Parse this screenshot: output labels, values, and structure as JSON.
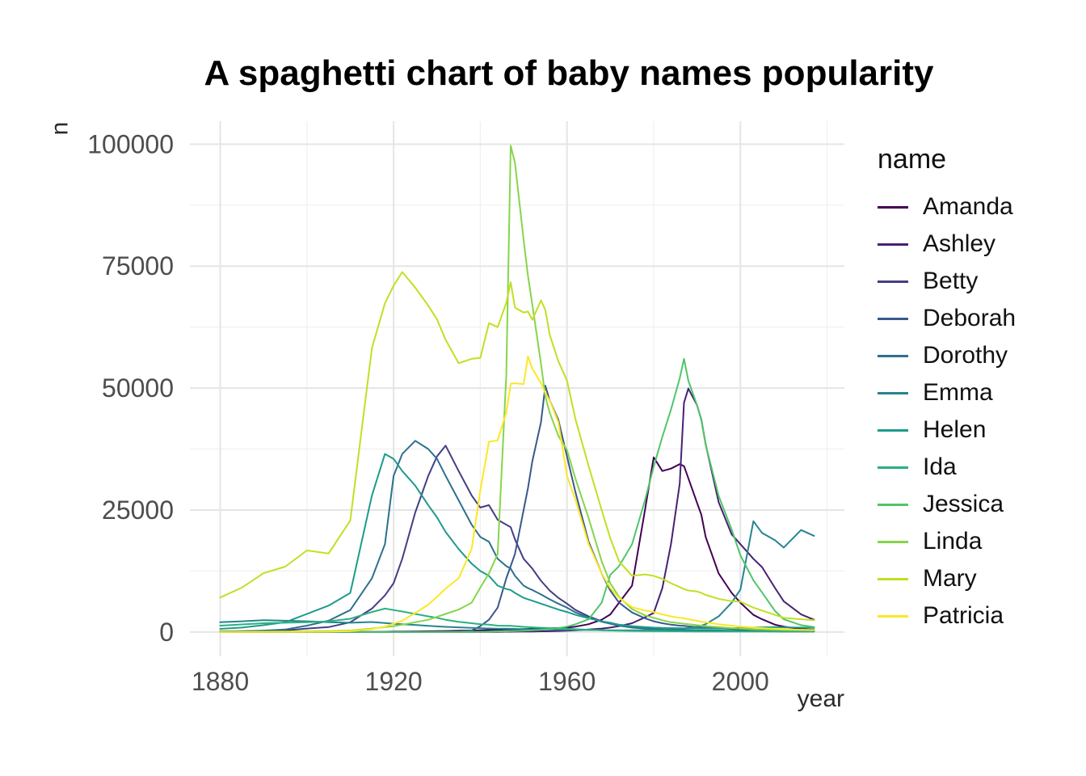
{
  "chart_data": {
    "type": "line",
    "title": "A spaghetti chart of baby names popularity",
    "xlabel": "year",
    "ylabel": "n",
    "legend_title": "name",
    "legend_position": "right",
    "grid": true,
    "background": "#FFFFFF",
    "grid_major_color": "#E5E5E5",
    "grid_minor_color": "#F0F0F0",
    "tick_text_color": "#4D4D4D",
    "xlim": [
      1873,
      2024
    ],
    "ylim": [
      -5000,
      104700
    ],
    "x_ticks": [
      {
        "value": 1880,
        "label": "1880"
      },
      {
        "value": 1920,
        "label": "1920"
      },
      {
        "value": 1960,
        "label": "1960"
      },
      {
        "value": 2000,
        "label": "2000"
      }
    ],
    "x_minor": [
      1900,
      1940,
      1980,
      2020
    ],
    "y_ticks": [
      {
        "value": 0,
        "label": "0"
      },
      {
        "value": 25000,
        "label": "25000"
      },
      {
        "value": 50000,
        "label": "50000"
      },
      {
        "value": 75000,
        "label": "75000"
      },
      {
        "value": 100000,
        "label": "100000"
      }
    ],
    "y_minor": [
      12500,
      37500,
      62500,
      87500
    ],
    "years": [
      1880,
      1885,
      1890,
      1895,
      1900,
      1905,
      1910,
      1915,
      1918,
      1920,
      1922,
      1925,
      1928,
      1930,
      1932,
      1935,
      1938,
      1940,
      1942,
      1944,
      1946,
      1947,
      1948,
      1950,
      1951,
      1952,
      1954,
      1955,
      1956,
      1958,
      1960,
      1962,
      1965,
      1968,
      1970,
      1972,
      1975,
      1978,
      1980,
      1982,
      1984,
      1986,
      1987,
      1988,
      1990,
      1991,
      1992,
      1995,
      1998,
      2000,
      2003,
      2005,
      2008,
      2010,
      2014,
      2017
    ],
    "series": [
      {
        "name": "Amanda",
        "color": "#440154",
        "values": [
          0,
          0,
          0,
          0,
          0,
          0,
          0,
          50,
          60,
          80,
          90,
          120,
          150,
          180,
          200,
          250,
          300,
          350,
          400,
          450,
          500,
          520,
          540,
          600,
          620,
          650,
          700,
          720,
          750,
          820,
          900,
          1100,
          1600,
          2500,
          3600,
          6000,
          9500,
          25000,
          35800,
          33000,
          33500,
          34400,
          34000,
          31500,
          26500,
          24000,
          19500,
          12000,
          8000,
          6000,
          3500,
          2600,
          1500,
          1100,
          600,
          450
        ]
      },
      {
        "name": "Ashley",
        "color": "#482173",
        "values": [
          0,
          0,
          0,
          0,
          0,
          0,
          0,
          0,
          0,
          0,
          0,
          0,
          0,
          0,
          0,
          0,
          0,
          0,
          0,
          0,
          50,
          60,
          70,
          90,
          100,
          110,
          130,
          140,
          160,
          200,
          250,
          350,
          500,
          700,
          900,
          1200,
          1800,
          3000,
          3900,
          9000,
          18000,
          30400,
          47000,
          49900,
          46500,
          43500,
          38500,
          26600,
          20000,
          18000,
          15000,
          13300,
          9000,
          6300,
          3600,
          2500
        ]
      },
      {
        "name": "Betty",
        "color": "#433E85",
        "values": [
          117,
          150,
          220,
          320,
          700,
          1000,
          2000,
          4800,
          7500,
          10000,
          15000,
          24500,
          32000,
          36000,
          38200,
          33000,
          28000,
          25500,
          26000,
          23000,
          22000,
          21500,
          19000,
          15000,
          14000,
          13000,
          10500,
          9500,
          8500,
          7000,
          5800,
          4500,
          3200,
          2200,
          1800,
          1300,
          900,
          700,
          600,
          500,
          420,
          360,
          340,
          320,
          290,
          280,
          270,
          240,
          210,
          190,
          160,
          140,
          120,
          110,
          95,
          85
        ]
      },
      {
        "name": "Deborah",
        "color": "#38598C",
        "values": [
          0,
          0,
          0,
          0,
          0,
          0,
          0,
          0,
          0,
          0,
          0,
          0,
          30,
          40,
          50,
          60,
          300,
          1200,
          2500,
          5000,
          11000,
          13500,
          16000,
          25000,
          29500,
          35000,
          43000,
          50500,
          47500,
          43500,
          36000,
          28500,
          18500,
          12000,
          8500,
          6000,
          4000,
          2800,
          2200,
          1800,
          1500,
          1300,
          1250,
          1150,
          1000,
          950,
          900,
          750,
          620,
          540,
          430,
          380,
          320,
          280,
          230,
          210
        ]
      },
      {
        "name": "Dorothy",
        "color": "#2D708E",
        "values": [
          112,
          150,
          280,
          500,
          1300,
          2300,
          4500,
          11000,
          18000,
          32000,
          36500,
          39200,
          37500,
          35500,
          32000,
          27000,
          22000,
          19500,
          18500,
          15000,
          13500,
          13000,
          11500,
          9500,
          9000,
          8600,
          7700,
          7200,
          6700,
          5800,
          5000,
          4000,
          2900,
          2100,
          1700,
          1300,
          950,
          750,
          640,
          540,
          470,
          420,
          400,
          380,
          350,
          340,
          330,
          300,
          270,
          250,
          220,
          210,
          190,
          180,
          190,
          200
        ]
      },
      {
        "name": "Emma",
        "color": "#25858E",
        "values": [
          2000,
          2200,
          2400,
          2300,
          2200,
          2000,
          1900,
          2050,
          1850,
          1700,
          1600,
          1450,
          1250,
          1150,
          1050,
          950,
          850,
          780,
          720,
          680,
          660,
          650,
          630,
          570,
          555,
          540,
          510,
          500,
          490,
          465,
          450,
          425,
          400,
          380,
          350,
          335,
          330,
          355,
          400,
          460,
          560,
          660,
          710,
          820,
          1100,
          1300,
          1600,
          3200,
          6000,
          8700,
          22700,
          20300,
          18800,
          17300,
          20900,
          19700
        ]
      },
      {
        "name": "Helen",
        "color": "#1E9B8A",
        "values": [
          640,
          900,
          1400,
          2000,
          3700,
          5400,
          8000,
          28000,
          36500,
          35500,
          33000,
          30000,
          26000,
          23500,
          20500,
          17000,
          14000,
          12500,
          11500,
          9500,
          8800,
          8600,
          8000,
          7000,
          6700,
          6400,
          5800,
          5500,
          5200,
          4600,
          4100,
          3500,
          2800,
          2200,
          1900,
          1500,
          1200,
          1000,
          900,
          850,
          800,
          780,
          770,
          760,
          750,
          740,
          730,
          700,
          700,
          890,
          900,
          950,
          1000,
          950,
          900,
          850
        ]
      },
      {
        "name": "Ida",
        "color": "#2BB07F",
        "values": [
          1300,
          1550,
          1800,
          1900,
          2000,
          2200,
          2700,
          4100,
          4800,
          4500,
          4200,
          3700,
          3200,
          2900,
          2500,
          2100,
          1800,
          1600,
          1500,
          1300,
          1280,
          1250,
          1200,
          1050,
          1000,
          950,
          870,
          830,
          800,
          720,
          650,
          560,
          450,
          360,
          310,
          260,
          210,
          180,
          160,
          150,
          140,
          130,
          125,
          120,
          110,
          108,
          105,
          100,
          95,
          90,
          85,
          85,
          90,
          100,
          120,
          140
        ]
      },
      {
        "name": "Jessica",
        "color": "#51C56A",
        "values": [
          0,
          0,
          0,
          0,
          0,
          0,
          0,
          0,
          0,
          0,
          0,
          0,
          0,
          0,
          10,
          20,
          30,
          40,
          50,
          80,
          120,
          150,
          180,
          250,
          300,
          350,
          450,
          500,
          600,
          800,
          1100,
          1600,
          2600,
          6000,
          11700,
          13500,
          18000,
          27000,
          33900,
          40000,
          45600,
          52000,
          56000,
          51500,
          46500,
          43400,
          38400,
          27900,
          21000,
          15700,
          10600,
          8100,
          4300,
          2600,
          1400,
          1000
        ]
      },
      {
        "name": "Linda",
        "color": "#85D54A",
        "values": [
          27,
          40,
          60,
          90,
          130,
          180,
          300,
          700,
          1000,
          1200,
          1500,
          2000,
          2500,
          3100,
          3700,
          4600,
          6000,
          9100,
          12000,
          16000,
          52800,
          99700,
          96200,
          80400,
          73000,
          67100,
          55000,
          48300,
          45000,
          40200,
          37300,
          31300,
          23300,
          14500,
          10000,
          7200,
          4700,
          3400,
          2900,
          2400,
          2000,
          1800,
          1700,
          1600,
          1400,
          1300,
          1200,
          1000,
          800,
          700,
          550,
          500,
          450,
          400,
          380,
          360
        ]
      },
      {
        "name": "Mary",
        "color": "#C2DF23",
        "values": [
          7065,
          9100,
          12050,
          13400,
          16700,
          16100,
          22850,
          58200,
          67400,
          71000,
          73800,
          70600,
          66900,
          64100,
          59900,
          55100,
          56000,
          56200,
          63300,
          62500,
          67500,
          71700,
          66500,
          65500,
          65700,
          64000,
          68000,
          66000,
          61000,
          55500,
          51500,
          43500,
          34000,
          25000,
          19200,
          14500,
          11500,
          11800,
          11500,
          10900,
          10000,
          9200,
          8800,
          8500,
          8300,
          8000,
          7600,
          6800,
          6300,
          6200,
          5000,
          4400,
          3500,
          2900,
          2600,
          2400
        ]
      },
      {
        "name": "Patricia",
        "color": "#FDE725",
        "values": [
          0,
          0,
          10,
          15,
          30,
          60,
          190,
          600,
          1100,
          1700,
          2300,
          3900,
          5600,
          7200,
          8900,
          11000,
          17000,
          29000,
          39000,
          39300,
          45000,
          50900,
          51000,
          50800,
          56500,
          54000,
          51000,
          49000,
          47500,
          43000,
          32000,
          27000,
          18000,
          12000,
          9000,
          7000,
          5100,
          4400,
          4100,
          3600,
          3200,
          2900,
          2800,
          2600,
          2300,
          2100,
          2000,
          1600,
          1300,
          1100,
          900,
          800,
          650,
          550,
          450,
          400
        ]
      }
    ]
  }
}
